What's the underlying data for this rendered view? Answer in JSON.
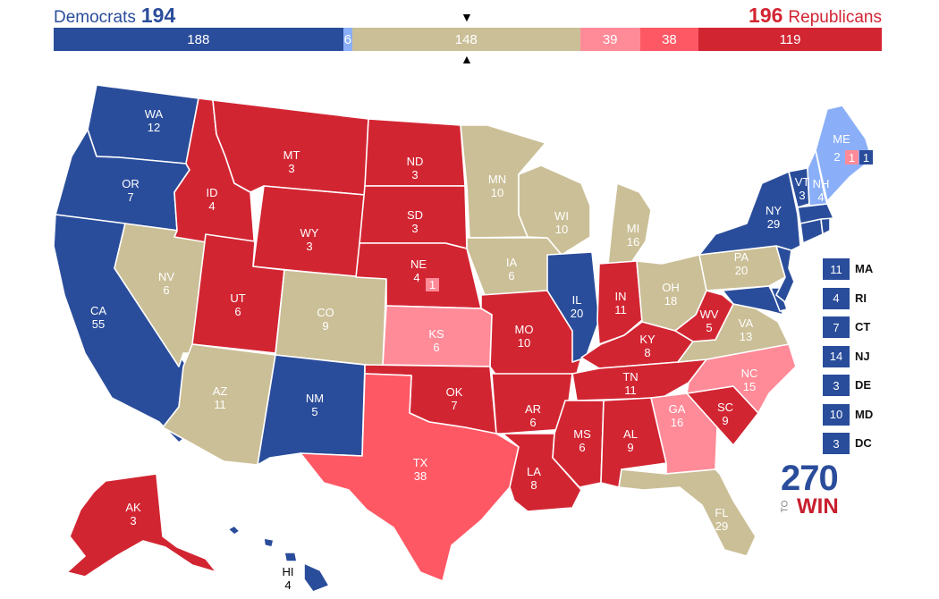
{
  "header": {
    "dem_label": "Democrats",
    "dem_total": "194",
    "rep_total": "196",
    "rep_label": "Republicans"
  },
  "colors": {
    "safe_dem": "#2a4d9b",
    "leans_dem": "#8aaff8",
    "tossup": "#cbbf97",
    "likely_rep": "#ff8b98",
    "leans_rep": "#ff5865",
    "safe_rep": "#d22532"
  },
  "bar": [
    {
      "label": "188",
      "value": 188,
      "color": "#2a4d9b"
    },
    {
      "label": "6",
      "value": 6,
      "color": "#8aaff8"
    },
    {
      "label": "148",
      "value": 148,
      "color": "#cbbf97"
    },
    {
      "label": "39",
      "value": 39,
      "color": "#ff8b98"
    },
    {
      "label": "38",
      "value": 38,
      "color": "#ff5865"
    },
    {
      "label": "119",
      "value": 119,
      "color": "#d22532"
    }
  ],
  "states": [
    {
      "abbr": "WA",
      "ev": "12",
      "cat": "safe_dem"
    },
    {
      "abbr": "OR",
      "ev": "7",
      "cat": "safe_dem"
    },
    {
      "abbr": "CA",
      "ev": "55",
      "cat": "safe_dem"
    },
    {
      "abbr": "NV",
      "ev": "6",
      "cat": "tossup"
    },
    {
      "abbr": "ID",
      "ev": "4",
      "cat": "safe_rep"
    },
    {
      "abbr": "MT",
      "ev": "3",
      "cat": "safe_rep"
    },
    {
      "abbr": "WY",
      "ev": "3",
      "cat": "safe_rep"
    },
    {
      "abbr": "UT",
      "ev": "6",
      "cat": "safe_rep"
    },
    {
      "abbr": "AZ",
      "ev": "11",
      "cat": "tossup"
    },
    {
      "abbr": "CO",
      "ev": "9",
      "cat": "tossup"
    },
    {
      "abbr": "NM",
      "ev": "5",
      "cat": "safe_dem"
    },
    {
      "abbr": "ND",
      "ev": "3",
      "cat": "safe_rep"
    },
    {
      "abbr": "SD",
      "ev": "3",
      "cat": "safe_rep"
    },
    {
      "abbr": "NE",
      "ev": "4",
      "cat": "safe_rep"
    },
    {
      "abbr": "KS",
      "ev": "6",
      "cat": "likely_rep"
    },
    {
      "abbr": "OK",
      "ev": "7",
      "cat": "safe_rep"
    },
    {
      "abbr": "TX",
      "ev": "38",
      "cat": "leans_rep"
    },
    {
      "abbr": "MN",
      "ev": "10",
      "cat": "tossup"
    },
    {
      "abbr": "IA",
      "ev": "6",
      "cat": "tossup"
    },
    {
      "abbr": "MO",
      "ev": "10",
      "cat": "safe_rep"
    },
    {
      "abbr": "AR",
      "ev": "6",
      "cat": "safe_rep"
    },
    {
      "abbr": "LA",
      "ev": "8",
      "cat": "safe_rep"
    },
    {
      "abbr": "WI",
      "ev": "10",
      "cat": "tossup"
    },
    {
      "abbr": "IL",
      "ev": "20",
      "cat": "safe_dem"
    },
    {
      "abbr": "MI",
      "ev": "16",
      "cat": "tossup"
    },
    {
      "abbr": "IN",
      "ev": "11",
      "cat": "safe_rep"
    },
    {
      "abbr": "OH",
      "ev": "18",
      "cat": "tossup"
    },
    {
      "abbr": "KY",
      "ev": "8",
      "cat": "safe_rep"
    },
    {
      "abbr": "TN",
      "ev": "11",
      "cat": "safe_rep"
    },
    {
      "abbr": "MS",
      "ev": "6",
      "cat": "safe_rep"
    },
    {
      "abbr": "AL",
      "ev": "9",
      "cat": "safe_rep"
    },
    {
      "abbr": "GA",
      "ev": "16",
      "cat": "likely_rep"
    },
    {
      "abbr": "FL",
      "ev": "29",
      "cat": "tossup"
    },
    {
      "abbr": "SC",
      "ev": "9",
      "cat": "safe_rep"
    },
    {
      "abbr": "NC",
      "ev": "15",
      "cat": "likely_rep"
    },
    {
      "abbr": "VA",
      "ev": "13",
      "cat": "tossup"
    },
    {
      "abbr": "WV",
      "ev": "5",
      "cat": "safe_rep"
    },
    {
      "abbr": "PA",
      "ev": "20",
      "cat": "tossup"
    },
    {
      "abbr": "NY",
      "ev": "29",
      "cat": "safe_dem"
    },
    {
      "abbr": "VT",
      "ev": "3",
      "cat": "safe_dem"
    },
    {
      "abbr": "NH",
      "ev": "4",
      "cat": "leans_dem"
    },
    {
      "abbr": "ME",
      "ev": "2",
      "cat": "leans_dem"
    },
    {
      "abbr": "AK",
      "ev": "3",
      "cat": "safe_rep"
    },
    {
      "abbr": "HI",
      "ev": "4",
      "cat": "safe_dem"
    }
  ],
  "districts": {
    "ne_district": "1",
    "me_district_1": "1",
    "me_district_2": "1"
  },
  "side_states": [
    {
      "abbr": "MA",
      "ev": "11"
    },
    {
      "abbr": "RI",
      "ev": "4"
    },
    {
      "abbr": "CT",
      "ev": "7"
    },
    {
      "abbr": "NJ",
      "ev": "14"
    },
    {
      "abbr": "DE",
      "ev": "3"
    },
    {
      "abbr": "MD",
      "ev": "10"
    },
    {
      "abbr": "DC",
      "ev": "3"
    }
  ],
  "logo": {
    "num": "270",
    "to": "TO",
    "win": "WIN"
  }
}
